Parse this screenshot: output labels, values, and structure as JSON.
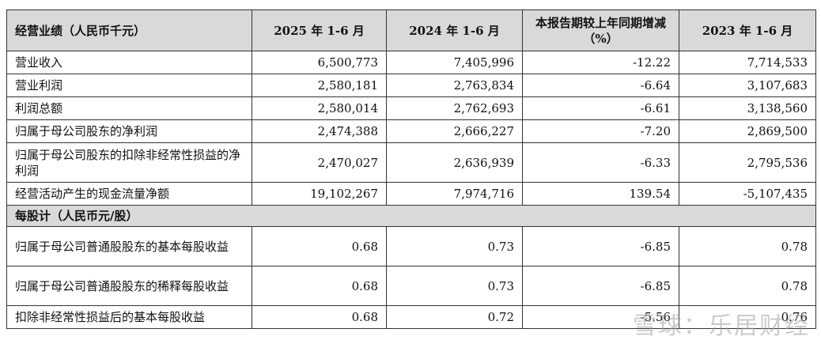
{
  "table": {
    "headers": [
      "经营业绩（人民币千元）",
      "2025 年 1-6 月",
      "2024 年 1-6 月",
      "本报告期较上年同期增减（%）",
      "2023 年 1-6 月"
    ],
    "rows": [
      [
        "营业收入",
        "6,500,773",
        "7,405,996",
        "-12.22",
        "7,714,533"
      ],
      [
        "营业利润",
        "2,580,181",
        "2,763,834",
        "-6.64",
        "3,107,683"
      ],
      [
        "利润总额",
        "2,580,014",
        "2,762,693",
        "-6.61",
        "3,138,560"
      ],
      [
        "归属于母公司股东的净利润",
        "2,474,388",
        "2,666,227",
        "-7.20",
        "2,869,500"
      ],
      [
        "归属于母公司股东的扣除非经常性损益的净利润",
        "2,470,027",
        "2,636,939",
        "-6.33",
        "2,795,536"
      ],
      [
        "经营活动产生的现金流量净额",
        "19,102,267",
        "7,974,716",
        "139.54",
        "-5,107,435"
      ]
    ],
    "section2_title": "每股计（人民币元/股）",
    "rows2": [
      [
        "归属于母公司普通股股东的基本每股收益",
        "0.68",
        "0.73",
        "-6.85",
        "0.78"
      ],
      [
        "归属于母公司普通股股东的稀释每股收益",
        "0.68",
        "0.73",
        "-6.85",
        "0.78"
      ],
      [
        "扣除非经常性损益后的基本每股收益",
        "0.68",
        "0.72",
        "-5.56",
        "0.76"
      ]
    ]
  },
  "watermark": "雪球：乐居财经"
}
